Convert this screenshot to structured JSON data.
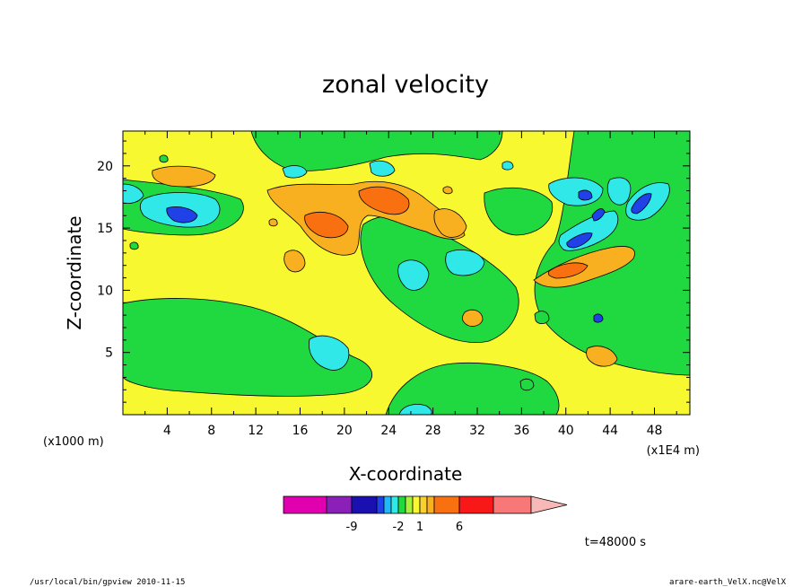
{
  "chart_data": {
    "type": "heatmap",
    "title": "zonal velocity",
    "xlabel": "X-coordinate",
    "ylabel": "Z-coordinate",
    "x_offset_label": "(x1000 m)",
    "x_scale_label": "(x1E4 m)",
    "xlim": [
      0,
      51.2
    ],
    "ylim": [
      0,
      22.8
    ],
    "x_ticks": [
      4,
      8,
      12,
      16,
      20,
      24,
      28,
      32,
      36,
      40,
      44,
      48
    ],
    "y_ticks": [
      5,
      10,
      15,
      20
    ],
    "colorbar": {
      "colors": [
        "#e000b0",
        "#8a20b8",
        "#1a10b0",
        "#2040e8",
        "#20b8f8",
        "#30e8e8",
        "#20d840",
        "#a8f040",
        "#f8f830",
        "#f8d030",
        "#f8b020",
        "#f87010",
        "#f81818",
        "#f87878",
        "#f8b8b8"
      ],
      "tick_labels": [
        {
          "label": "-9",
          "after_box": 1
        },
        {
          "label": "-2",
          "after_box": 5
        },
        {
          "label": "1",
          "after_box": 8
        },
        {
          "label": "6",
          "after_box": 11
        }
      ]
    },
    "time_label": "t=48000 s"
  },
  "footer": {
    "left": "/usr/local/bin/gpview  2010-11-15",
    "right": "arare-earth_VelX.nc@VelX"
  },
  "colors": {
    "background": "#f8f830",
    "green": "#20d840",
    "cyan": "#30e8e8",
    "orange": "#f8b020",
    "dark_orange": "#f87010",
    "blue": "#2040e8",
    "yellow_green": "#a8f040"
  }
}
